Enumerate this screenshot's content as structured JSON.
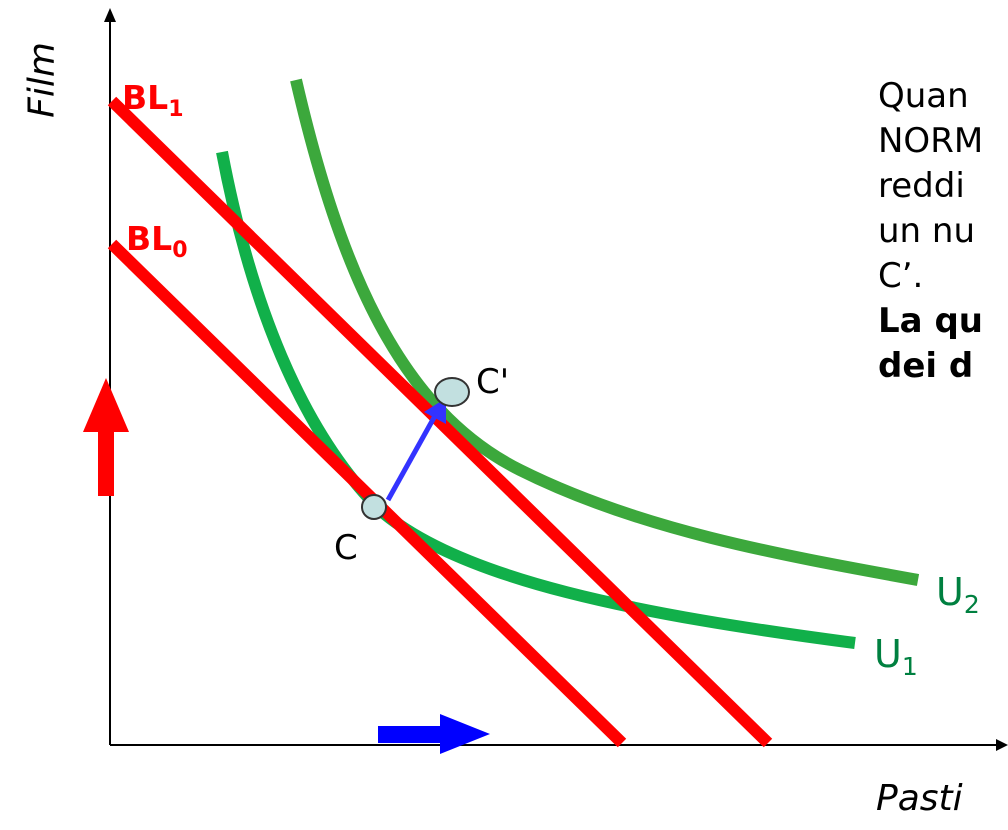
{
  "axes": {
    "y_title": "Film",
    "x_title": "Pasti"
  },
  "budget_lines": [
    {
      "name": "BL",
      "sub": "1",
      "color": "#ff0000"
    },
    {
      "name": "BL",
      "sub": "0",
      "color": "#ff0000"
    }
  ],
  "indifference_curves": [
    {
      "name": "U",
      "sub": "2",
      "color": "#3ca83c"
    },
    {
      "name": "U",
      "sub": "1",
      "color": "#11b04a"
    }
  ],
  "points": {
    "c": "C",
    "c_prime": "C'"
  },
  "callout": {
    "line1": "Quan",
    "line2": "NORM",
    "line3": "reddi",
    "line4": "un nu",
    "line5": "C’.",
    "line6": "La qu",
    "line7": "dei d"
  },
  "colors": {
    "budget": "#ff0000",
    "curve_u2": "#3ca83c",
    "curve_u1": "#11b04a",
    "axis": "#000000",
    "shift_arrow": "#3333ff",
    "income_arrow_up": "#ff0000",
    "income_arrow_right": "#0000ff",
    "point_fill": "#c2e0e0"
  }
}
